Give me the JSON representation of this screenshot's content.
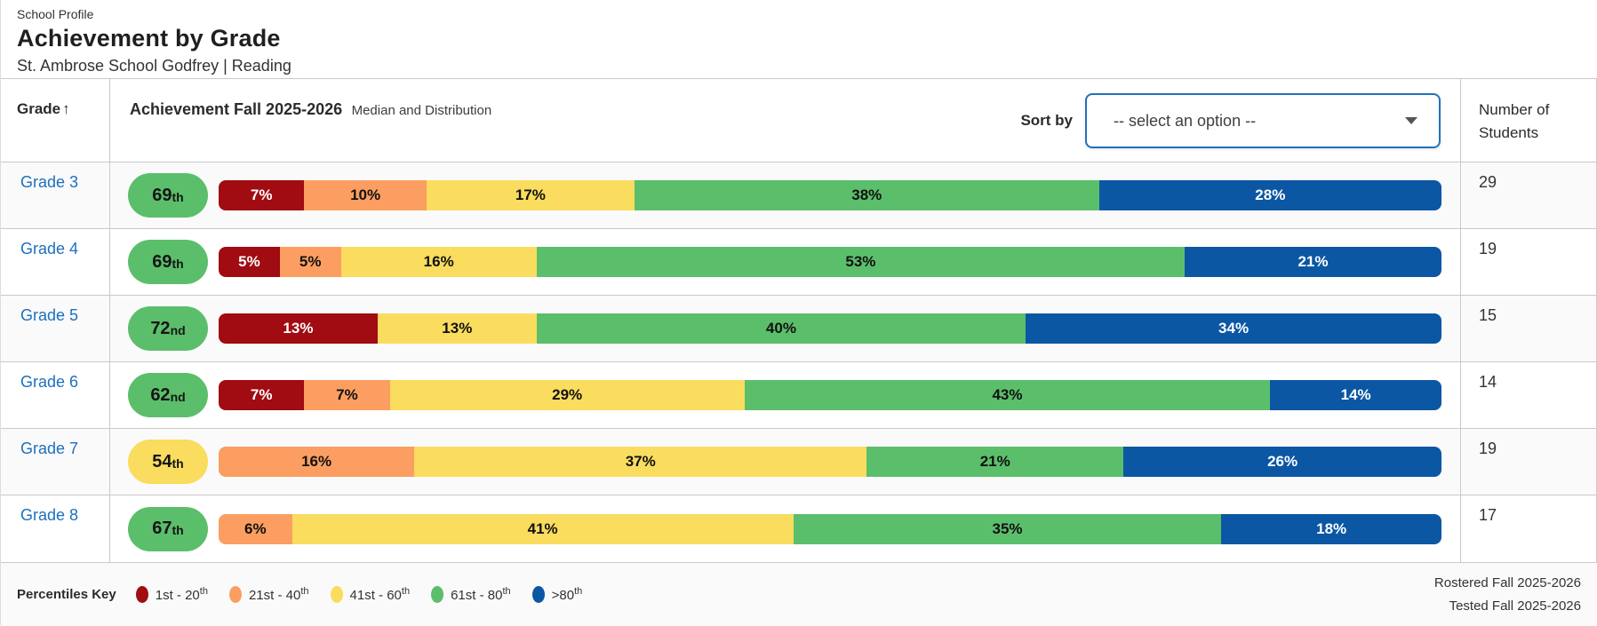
{
  "header": {
    "eyebrow": "School Profile",
    "title": "Achievement by Grade",
    "subtitle": "St. Ambrose School Godfrey | Reading"
  },
  "table": {
    "grade_header": "Grade",
    "sort_arrow": "↑",
    "achievement_header": "Achievement Fall 2025-2026",
    "achievement_subheader": "Median and Distribution",
    "sort_by_label": "Sort by",
    "sort_select_value": "-- select an option --",
    "students_header": "Number of Students"
  },
  "colors": {
    "p1_20": "#a00c11",
    "p21_40": "#fc9e61",
    "p41_60": "#fadc5e",
    "p61_80": "#5bbe6b",
    "p80plus": "#0b57a4",
    "link": "#1d70bd",
    "dropdown_border": "#2272b9"
  },
  "segment_text_colors": {
    "p1_20": "#ffffff",
    "p21_40": "#111111",
    "p41_60": "#111111",
    "p61_80": "#111111",
    "p80plus": "#ffffff"
  },
  "rows": [
    {
      "grade": "Grade 3",
      "median": "69",
      "suffix": "th",
      "badge_key": "p61_80",
      "students": "29",
      "segments": [
        {
          "key": "p1_20",
          "value": 7
        },
        {
          "key": "p21_40",
          "value": 10
        },
        {
          "key": "p41_60",
          "value": 17
        },
        {
          "key": "p61_80",
          "value": 38
        },
        {
          "key": "p80plus",
          "value": 28
        }
      ]
    },
    {
      "grade": "Grade 4",
      "median": "69",
      "suffix": "th",
      "badge_key": "p61_80",
      "students": "19",
      "segments": [
        {
          "key": "p1_20",
          "value": 5
        },
        {
          "key": "p21_40",
          "value": 5
        },
        {
          "key": "p41_60",
          "value": 16
        },
        {
          "key": "p61_80",
          "value": 53
        },
        {
          "key": "p80plus",
          "value": 21
        }
      ]
    },
    {
      "grade": "Grade 5",
      "median": "72",
      "suffix": "nd",
      "badge_key": "p61_80",
      "students": "15",
      "segments": [
        {
          "key": "p1_20",
          "value": 13
        },
        {
          "key": "p41_60",
          "value": 13
        },
        {
          "key": "p61_80",
          "value": 40
        },
        {
          "key": "p80plus",
          "value": 34
        }
      ]
    },
    {
      "grade": "Grade 6",
      "median": "62",
      "suffix": "nd",
      "badge_key": "p61_80",
      "students": "14",
      "segments": [
        {
          "key": "p1_20",
          "value": 7
        },
        {
          "key": "p21_40",
          "value": 7
        },
        {
          "key": "p41_60",
          "value": 29
        },
        {
          "key": "p61_80",
          "value": 43
        },
        {
          "key": "p80plus",
          "value": 14
        }
      ]
    },
    {
      "grade": "Grade 7",
      "median": "54",
      "suffix": "th",
      "badge_key": "p41_60",
      "students": "19",
      "segments": [
        {
          "key": "p21_40",
          "value": 16
        },
        {
          "key": "p41_60",
          "value": 37
        },
        {
          "key": "p61_80",
          "value": 21
        },
        {
          "key": "p80plus",
          "value": 26
        }
      ]
    },
    {
      "grade": "Grade 8",
      "median": "67",
      "suffix": "th",
      "badge_key": "p61_80",
      "students": "17",
      "segments": [
        {
          "key": "p21_40",
          "value": 6
        },
        {
          "key": "p41_60",
          "value": 41
        },
        {
          "key": "p61_80",
          "value": 35
        },
        {
          "key": "p80plus",
          "value": 18
        }
      ]
    }
  ],
  "legend": {
    "title": "Percentiles Key",
    "items": [
      {
        "key": "p1_20",
        "label": "1st - 20",
        "sup": "th"
      },
      {
        "key": "p21_40",
        "label": "21st - 40",
        "sup": "th"
      },
      {
        "key": "p41_60",
        "label": "41st - 60",
        "sup": "th"
      },
      {
        "key": "p61_80",
        "label": "61st - 80",
        "sup": "th"
      },
      {
        "key": "p80plus",
        "label": ">80",
        "sup": "th"
      }
    ]
  },
  "footer": {
    "rostered": "Rostered Fall 2025-2026",
    "tested": "Tested Fall 2025-2026"
  }
}
